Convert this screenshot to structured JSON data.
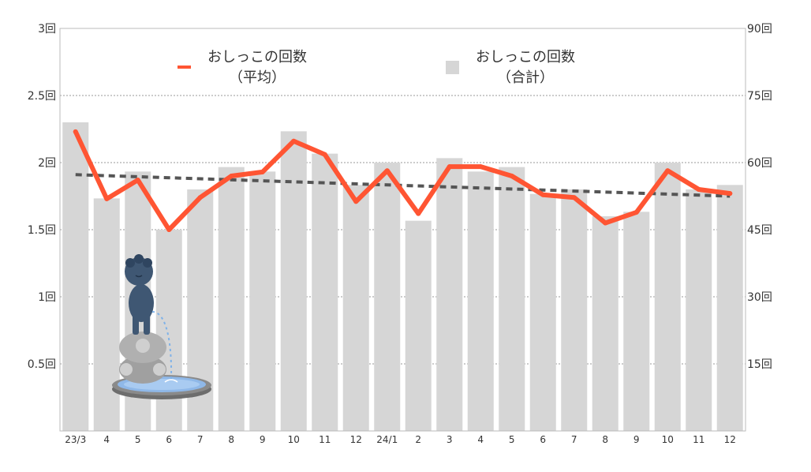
{
  "chart_data": {
    "type": "bar",
    "categories": [
      "23/3",
      "4",
      "5",
      "6",
      "7",
      "8",
      "9",
      "10",
      "11",
      "12",
      "24/1",
      "2",
      "3",
      "4",
      "5",
      "6",
      "7",
      "8",
      "9",
      "10",
      "11",
      "12"
    ],
    "series": [
      {
        "name": "おしっこの回数（合計）",
        "legend_lines": [
          "おしっこの回数",
          "（合計）"
        ],
        "type": "bar",
        "axis": "right",
        "color": "#d6d6d6",
        "values": [
          69,
          52,
          58,
          45,
          54,
          59,
          58,
          67,
          62,
          55,
          60,
          47,
          61,
          58,
          59,
          53,
          54,
          48,
          49,
          60,
          54,
          55
        ]
      },
      {
        "name": "おしっこの回数（平均）",
        "legend_lines": [
          "おしっこの回数",
          "（平均）"
        ],
        "type": "line",
        "axis": "left",
        "color": "#ff5533",
        "values": [
          2.23,
          1.73,
          1.87,
          1.5,
          1.74,
          1.9,
          1.93,
          2.16,
          2.06,
          1.71,
          1.94,
          1.62,
          1.97,
          1.97,
          1.9,
          1.76,
          1.74,
          1.55,
          1.63,
          1.94,
          1.8,
          1.77
        ]
      }
    ],
    "trendline": {
      "color": "#555555",
      "start": 1.91,
      "end": 1.75
    },
    "y_left": {
      "min": 0,
      "max": 3,
      "ticks": [
        0.5,
        1,
        1.5,
        2,
        2.5,
        3
      ],
      "tick_labels": [
        "0.5回",
        "1回",
        "1.5回",
        "2回",
        "2.5回",
        "3回"
      ]
    },
    "y_right": {
      "min": 0,
      "max": 90,
      "ticks": [
        15,
        30,
        45,
        60,
        75,
        90
      ],
      "tick_labels": [
        "15回",
        "30回",
        "45回",
        "60回",
        "75回",
        "90回"
      ]
    },
    "grid": true,
    "legend_position": "top"
  },
  "illustration": {
    "name": "manneken-pis-fountain-illustration"
  }
}
